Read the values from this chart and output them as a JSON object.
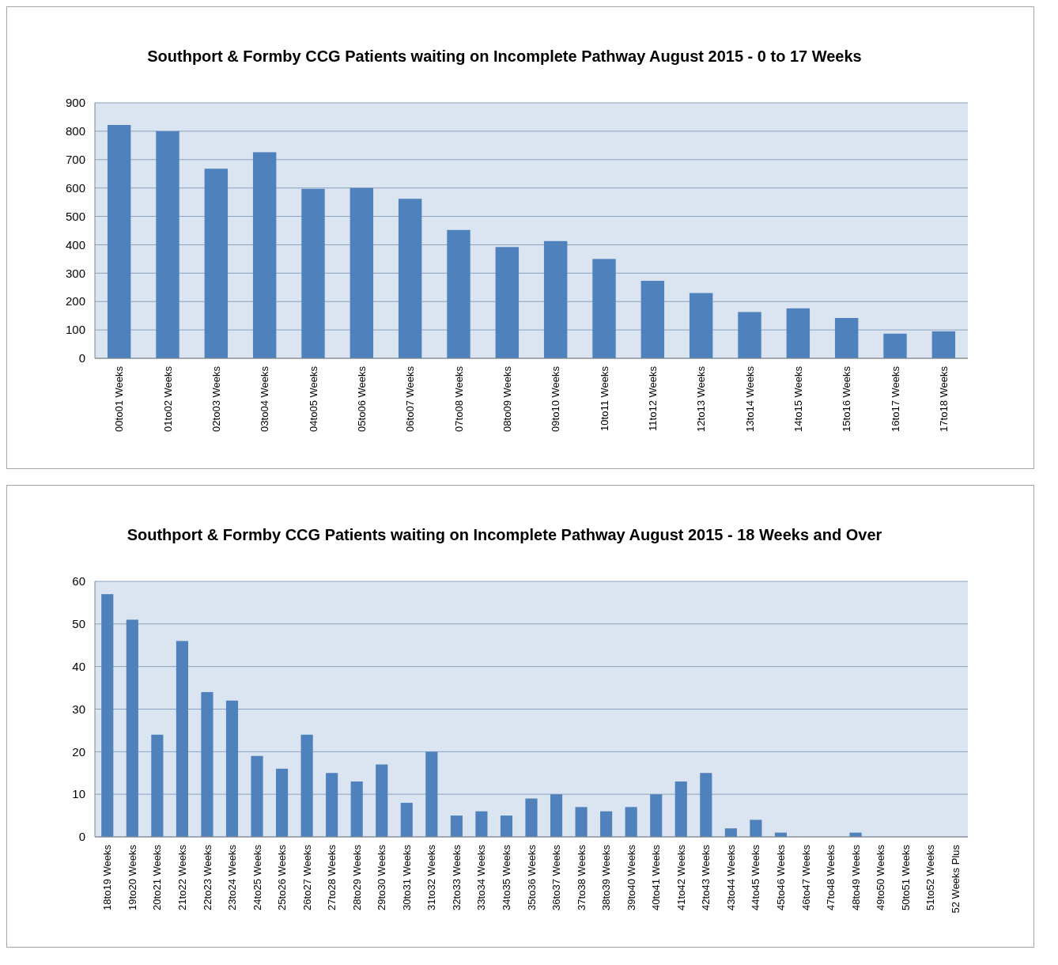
{
  "chart_data": [
    {
      "type": "bar",
      "title": "Southport & Formby CCG Patients waiting on Incomplete Pathway August 2015 - 0 to 17 Weeks",
      "categories": [
        "00to01 Weeks",
        "01to02 Weeks",
        "02to03 Weeks",
        "03to04 Weeks",
        "04to05 Weeks",
        "05to06 Weeks",
        "06to07 Weeks",
        "07to08 Weeks",
        "08to09 Weeks",
        "09to10 Weeks",
        "10to11 Weeks",
        "11to12 Weeks",
        "12to13 Weeks",
        "13to14 Weeks",
        "14to15 Weeks",
        "15to16 Weeks",
        "16to17 Weeks",
        "17to18 Weeks"
      ],
      "values": [
        822,
        800,
        668,
        726,
        597,
        600,
        562,
        452,
        392,
        413,
        350,
        273,
        230,
        163,
        176,
        142,
        87,
        95
      ],
      "color": "#4f81bd",
      "ylim": [
        0,
        900
      ],
      "yticks": [
        0,
        100,
        200,
        300,
        400,
        500,
        600,
        700,
        800,
        900
      ],
      "grid": "y"
    },
    {
      "type": "bar",
      "title": "Southport & Formby CCG Patients waiting on Incomplete Pathway August 2015 - 18 Weeks and Over",
      "categories": [
        "18to19 Weeks",
        "19to20 Weeks",
        "20to21 Weeks",
        "21to22 Weeks",
        "22to23 Weeks",
        "23to24 Weeks",
        "24to25 Weeks",
        "25to26 Weeks",
        "26to27 Weeks",
        "27to28 Weeks",
        "28to29 Weeks",
        "29to30 Weeks",
        "30to31 Weeks",
        "31to32 Weeks",
        "32to33 Weeks",
        "33to34 Weeks",
        "34to35 Weeks",
        "35to36 Weeks",
        "36to37 Weeks",
        "37to38 Weeks",
        "38to39 Weeks",
        "39to40 Weeks",
        "40to41 Weeks",
        "41to42 Weeks",
        "42to43 Weeks",
        "43to44 Weeks",
        "44to45 Weeks",
        "45to46 Weeks",
        "46to47 Weeks",
        "47to48 Weeks",
        "48to49 Weeks",
        "49to50 Weeks",
        "50to51 Weeks",
        "51to52 Weeks",
        "52 Weeks Plus"
      ],
      "values": [
        57,
        51,
        24,
        46,
        34,
        32,
        19,
        16,
        24,
        15,
        13,
        17,
        8,
        20,
        5,
        6,
        5,
        9,
        10,
        7,
        6,
        7,
        10,
        13,
        15,
        2,
        4,
        1,
        0,
        0,
        1,
        0,
        0,
        0,
        0
      ],
      "color": "#4f81bd",
      "ylim": [
        0,
        60
      ],
      "yticks": [
        0,
        10,
        20,
        30,
        40,
        50,
        60
      ],
      "grid": "y"
    }
  ]
}
